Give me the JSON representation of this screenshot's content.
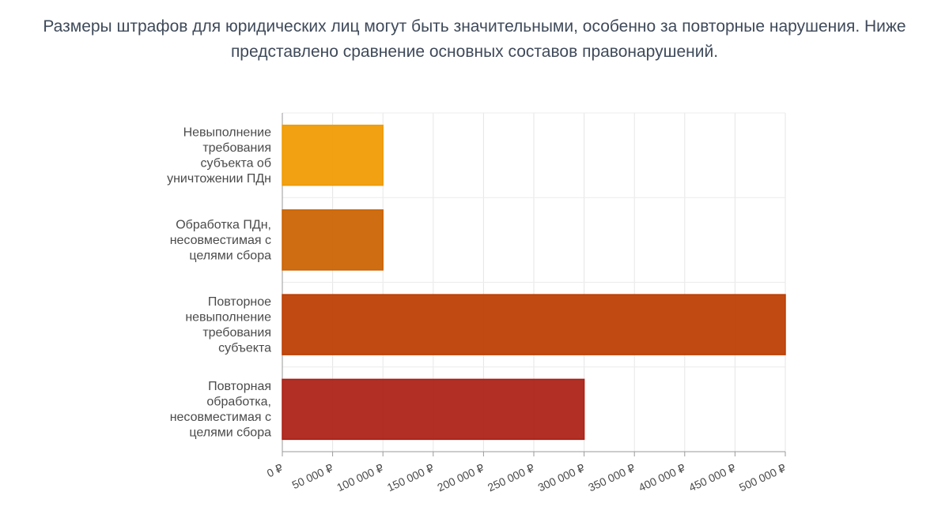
{
  "intro": {
    "line1": "Размеры штрафов для юридических лиц могут быть значительными, особенно за повторные нарушения. Ниже",
    "line2": "представлено сравнение основных составов правонарушений."
  },
  "chart_data": {
    "type": "bar",
    "orientation": "horizontal",
    "categories": [
      [
        "Невыполнение",
        "требования",
        "субъекта об",
        "уничтожении ПДн"
      ],
      [
        "Обработка ПДн,",
        "несовместимая с",
        "целями сбора"
      ],
      [
        "Повторное",
        "невыполнение",
        "требования",
        "субъекта"
      ],
      [
        "Повторная",
        "обработка,",
        "несовместимая с",
        "целями сбора"
      ]
    ],
    "values": [
      100000,
      100000,
      500000,
      300000
    ],
    "colors": [
      "#f09a00",
      "#cb6200",
      "#bc3c00",
      "#ab1f14"
    ],
    "xlim": [
      0,
      500000
    ],
    "xticks": [
      0,
      50000,
      100000,
      150000,
      200000,
      250000,
      300000,
      350000,
      400000,
      450000,
      500000
    ],
    "xtick_labels": [
      "0 ₽",
      "50 000 ₽",
      "100 000 ₽",
      "150 000 ₽",
      "200 000 ₽",
      "250 000 ₽",
      "300 000 ₽",
      "350 000 ₽",
      "400 000 ₽",
      "450 000 ₽",
      "500 000 ₽"
    ],
    "grid": true,
    "legend": false
  }
}
